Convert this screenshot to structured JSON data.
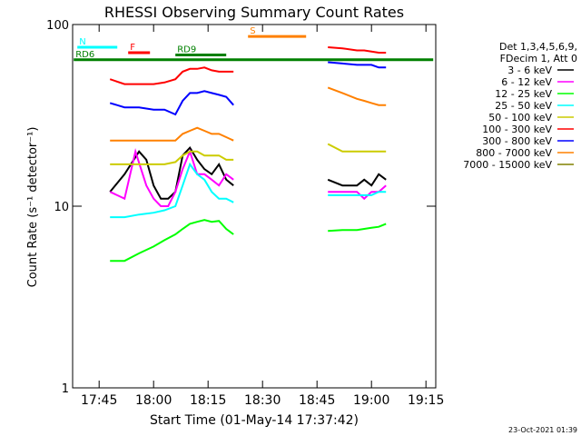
{
  "chart_data": {
    "type": "line",
    "title": "RHESSI Observing Summary Count Rates",
    "xlabel": "Start Time (01-May-14 17:37:42)",
    "ylabel": "Count Rate (s⁻¹ detector⁻¹)",
    "y_scale": "log",
    "ylim": [
      1,
      100
    ],
    "xlim": [
      "17:37:42",
      "19:17:42"
    ],
    "x_ticks": [
      "17:45",
      "18:00",
      "18:15",
      "18:30",
      "18:45",
      "19:00",
      "19:15"
    ],
    "y_ticks": [
      "1",
      "10",
      "100"
    ],
    "grid": false,
    "legend": {
      "placement": "right",
      "header": [
        "Det 1,3,4,5,6,9,",
        "FDecim 1, Att 0"
      ],
      "entries": [
        {
          "name": "3 - 6 keV",
          "color": "#000000"
        },
        {
          "name": "6 - 12 keV",
          "color": "#ff00ff"
        },
        {
          "name": "12 - 25 keV",
          "color": "#00ff00"
        },
        {
          "name": "25 - 50 keV",
          "color": "#00ffff"
        },
        {
          "name": "50 - 100 keV",
          "color": "#cccc00"
        },
        {
          "name": "100 - 300 keV",
          "color": "#ff0000"
        },
        {
          "name": "300 - 800 keV",
          "color": "#0000ff"
        },
        {
          "name": "800 - 7000 keV",
          "color": "#ff8000"
        },
        {
          "name": "7000 - 15000 keV",
          "color": "#808000"
        }
      ]
    },
    "flags": [
      {
        "label": "N",
        "color": "#00ffff",
        "level": 75
      },
      {
        "label": "F",
        "color": "#ff0000",
        "level": 70
      },
      {
        "label": "S",
        "color": "#ff8000",
        "level": 86
      },
      {
        "label": "RD6",
        "color": "#008000",
        "level": 64
      },
      {
        "label": "RD9",
        "color": "#008000",
        "level": 68
      }
    ],
    "series": [
      {
        "name": "3 - 6 keV",
        "color": "#000000",
        "segments": [
          {
            "x": [
              "17:48",
              "17:52",
              "17:56",
              "17:58",
              "18:00",
              "18:02",
              "18:04",
              "18:06",
              "18:08",
              "18:10",
              "18:12",
              "18:14",
              "18:16",
              "18:18",
              "18:20",
              "18:22"
            ],
            "y": [
              12,
              15,
              20,
              18,
              13,
              11,
              11,
              12,
              19,
              21,
              18,
              16,
              15,
              17,
              14,
              13
            ]
          },
          {
            "x": [
              "18:48",
              "18:52",
              "18:56",
              "18:58",
              "19:00",
              "19:02",
              "19:04"
            ],
            "y": [
              14,
              13,
              13,
              14,
              13,
              15,
              14
            ]
          }
        ]
      },
      {
        "name": "6 - 12 keV",
        "color": "#ff00ff",
        "segments": [
          {
            "x": [
              "17:48",
              "17:52",
              "17:55",
              "17:58",
              "18:00",
              "18:02",
              "18:04",
              "18:06",
              "18:08",
              "18:10",
              "18:12",
              "18:14",
              "18:16",
              "18:18",
              "18:20",
              "18:22"
            ],
            "y": [
              12,
              11,
              20,
              13,
              11,
              10,
              10,
              12,
              16,
              20,
              15,
              15,
              14,
              13,
              15,
              14
            ]
          },
          {
            "x": [
              "18:48",
              "18:52",
              "18:56",
              "18:58",
              "19:00",
              "19:02",
              "19:04"
            ],
            "y": [
              12,
              12,
              12,
              11,
              12,
              12,
              13
            ]
          }
        ]
      },
      {
        "name": "12 - 25 keV",
        "color": "#00ff00",
        "segments": [
          {
            "x": [
              "17:48",
              "17:52",
              "17:56",
              "18:00",
              "18:03",
              "18:06",
              "18:08",
              "18:10",
              "18:12",
              "18:14",
              "18:16",
              "18:18",
              "18:20",
              "18:22"
            ],
            "y": [
              5,
              5,
              5.5,
              6,
              6.5,
              7,
              7.5,
              8,
              8.2,
              8.4,
              8.2,
              8.3,
              7.5,
              7
            ]
          },
          {
            "x": [
              "18:48",
              "18:52",
              "18:56",
              "18:58",
              "19:00",
              "19:02",
              "19:04"
            ],
            "y": [
              7.3,
              7.4,
              7.4,
              7.5,
              7.6,
              7.7,
              8
            ]
          }
        ]
      },
      {
        "name": "25 - 50 keV",
        "color": "#00ffff",
        "segments": [
          {
            "x": [
              "17:48",
              "17:52",
              "17:56",
              "18:00",
              "18:03",
              "18:06",
              "18:08",
              "18:10",
              "18:12",
              "18:14",
              "18:16",
              "18:18",
              "18:20",
              "18:22"
            ],
            "y": [
              8.7,
              8.7,
              9,
              9.2,
              9.5,
              10,
              13,
              17,
              15,
              14,
              12,
              11,
              11,
              10.5
            ]
          },
          {
            "x": [
              "18:48",
              "18:52",
              "18:56",
              "18:58",
              "19:00",
              "19:02",
              "19:04"
            ],
            "y": [
              11.5,
              11.5,
              11.5,
              11.5,
              11.5,
              12,
              12
            ]
          }
        ]
      },
      {
        "name": "50 - 100 keV",
        "color": "#cccc00",
        "segments": [
          {
            "x": [
              "17:48",
              "17:52",
              "17:56",
              "18:00",
              "18:03",
              "18:06",
              "18:08",
              "18:10",
              "18:12",
              "18:14",
              "18:16",
              "18:18",
              "18:20",
              "18:22"
            ],
            "y": [
              17,
              17,
              17,
              17,
              17,
              17.5,
              19,
              20,
              20,
              19,
              19,
              19,
              18,
              18
            ]
          },
          {
            "x": [
              "18:48",
              "18:52",
              "18:56",
              "18:58",
              "19:00",
              "19:02",
              "19:04"
            ],
            "y": [
              22,
              20,
              20,
              20,
              20,
              20,
              20
            ]
          }
        ]
      },
      {
        "name": "100 - 300 keV",
        "color": "#ff0000",
        "segments": [
          {
            "x": [
              "17:48",
              "17:52",
              "17:56",
              "18:00",
              "18:03",
              "18:06",
              "18:08",
              "18:10",
              "18:12",
              "18:14",
              "18:16",
              "18:18",
              "18:20",
              "18:22"
            ],
            "y": [
              50,
              47,
              47,
              47,
              48,
              50,
              55,
              57,
              57,
              58,
              56,
              55,
              55,
              55
            ]
          },
          {
            "x": [
              "18:48",
              "18:52",
              "18:56",
              "18:58",
              "19:00",
              "19:02",
              "19:04"
            ],
            "y": [
              75,
              74,
              72,
              72,
              71,
              70,
              70
            ]
          }
        ]
      },
      {
        "name": "300 - 800 keV",
        "color": "#0000ff",
        "segments": [
          {
            "x": [
              "17:48",
              "17:52",
              "17:56",
              "18:00",
              "18:03",
              "18:06",
              "18:08",
              "18:10",
              "18:12",
              "18:14",
              "18:16",
              "18:18",
              "18:20",
              "18:22"
            ],
            "y": [
              37,
              35,
              35,
              34,
              34,
              32,
              38,
              42,
              42,
              43,
              42,
              41,
              40,
              36
            ]
          },
          {
            "x": [
              "18:48",
              "18:52",
              "18:56",
              "18:58",
              "19:00",
              "19:02",
              "19:04"
            ],
            "y": [
              62,
              61,
              60,
              60,
              60,
              58,
              58
            ]
          }
        ]
      },
      {
        "name": "800 - 7000 keV",
        "color": "#ff8000",
        "segments": [
          {
            "x": [
              "17:48",
              "17:52",
              "17:56",
              "18:00",
              "18:03",
              "18:06",
              "18:08",
              "18:10",
              "18:12",
              "18:14",
              "18:16",
              "18:18",
              "18:20",
              "18:22"
            ],
            "y": [
              23,
              23,
              23,
              23,
              23,
              23,
              25,
              26,
              27,
              26,
              25,
              25,
              24,
              23
            ]
          },
          {
            "x": [
              "18:48",
              "18:52",
              "18:56",
              "18:58",
              "19:00",
              "19:02",
              "19:04"
            ],
            "y": [
              45,
              42,
              39,
              38,
              37,
              36,
              36
            ]
          }
        ]
      },
      {
        "name": "7000 - 15000 keV",
        "color": "#808000",
        "segments": []
      }
    ]
  },
  "footer": {
    "timestamp": "23-Oct-2021 01:39"
  }
}
